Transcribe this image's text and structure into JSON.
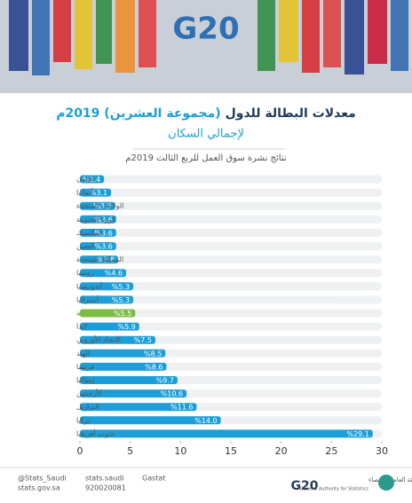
{
  "chart_data": {
    "type": "hbar",
    "header_logo": "G20",
    "title": "معدلات البطالة للدول",
    "title_highlight": "(مجموعة العشرين) 2019م",
    "title_line2": "لإجمالي السكان",
    "subtitle": "نتائج نشرة سوق العمل للربع الثالث 2019م",
    "categories": [
      "اليابان",
      "ألمانيا",
      "الولايات المتحدة",
      "كوريا الجنوبية",
      "المكسيك",
      "الصين",
      "المملكة المتحدة",
      "روسيا",
      "أندونيسيا",
      "أستراليا",
      "السعودية",
      "كندا",
      "الاتحاد الأوروبي",
      "الهند",
      "فرنسا",
      "إيطاليا",
      "الأرجنتين",
      "البرازيل",
      "تركيا",
      "جنوب أفريقيا"
    ],
    "values": [
      2.4,
      3.1,
      3.5,
      3.6,
      3.6,
      3.6,
      3.8,
      4.6,
      5.3,
      5.3,
      5.5,
      5.9,
      7.5,
      8.5,
      8.6,
      9.7,
      10.6,
      11.6,
      14.0,
      29.1
    ],
    "value_labels": [
      "%2.4",
      "%3.1",
      "%3.5",
      "%3.6",
      "%3.6",
      "%3.6",
      "%3.8",
      "%4.6",
      "%5.3",
      "%5.3",
      "%5.5",
      "%5.9",
      "%7.5",
      "%8.5",
      "%8.6",
      "%9.7",
      "%10.6",
      "%11.6",
      "%14.0",
      "%29.1"
    ],
    "colors": [
      "#1c9fd8",
      "#1c9fd8",
      "#1c9fd8",
      "#1c9fd8",
      "#1c9fd8",
      "#1c9fd8",
      "#1c9fd8",
      "#1c9fd8",
      "#1c9fd8",
      "#1c9fd8",
      "#7cbc42",
      "#1c9fd8",
      "#1c9fd8",
      "#1c9fd8",
      "#1c9fd8",
      "#1c9fd8",
      "#1c9fd8",
      "#1c9fd8",
      "#1c9fd8",
      "#1c9fd8"
    ],
    "xlim": [
      0,
      30
    ],
    "xticks": [
      0,
      5,
      10,
      15,
      20,
      25,
      30
    ]
  },
  "footer": {
    "twitter": "@Stats_Saudi",
    "instagram": "stats.saudi",
    "snapchat": "Gastat",
    "website": "stats.gov.sa",
    "phone": "920020081",
    "logo": "G20",
    "org_ar": "الهيئة العامة للإحصاء",
    "org_en": "General Authority for Statistics"
  }
}
